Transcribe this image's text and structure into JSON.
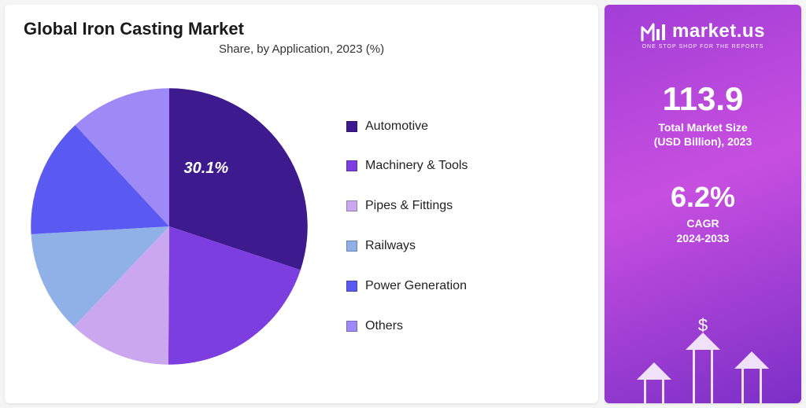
{
  "chart": {
    "title": "Global Iron Casting Market",
    "subtitle": "Share, by Application, 2023 (%)",
    "type": "pie",
    "highlight_label": "30.1%",
    "background_color": "#ffffff",
    "slices": [
      {
        "label": "Automotive",
        "value": 30.1,
        "color": "#3e1a8f"
      },
      {
        "label": "Machinery & Tools",
        "value": 20.0,
        "color": "#7d3ee0"
      },
      {
        "label": "Pipes & Fittings",
        "value": 12.0,
        "color": "#caa7ef"
      },
      {
        "label": "Railways",
        "value": 12.0,
        "color": "#8fb1e8"
      },
      {
        "label": "Power Generation",
        "value": 14.0,
        "color": "#5a5af2"
      },
      {
        "label": "Others",
        "value": 11.9,
        "color": "#9e8af7"
      }
    ],
    "label_color": "#ffffff",
    "label_fontsize": 20,
    "legend_fontsize": 16
  },
  "side": {
    "brand_name": "market.us",
    "brand_tagline": "ONE STOP SHOP FOR THE REPORTS",
    "stat1_value": "113.9",
    "stat1_label_a": "Total Market Size",
    "stat1_label_b": "(USD Billion), 2023",
    "stat2_value": "6.2%",
    "stat2_label_a": "CAGR",
    "stat2_label_b": "2024-2033",
    "dollar": "$",
    "bg_gradient": [
      "#a23ed6",
      "#c74fe0",
      "#7b2fc7"
    ],
    "arrow_heights": [
      30,
      68,
      44
    ]
  }
}
